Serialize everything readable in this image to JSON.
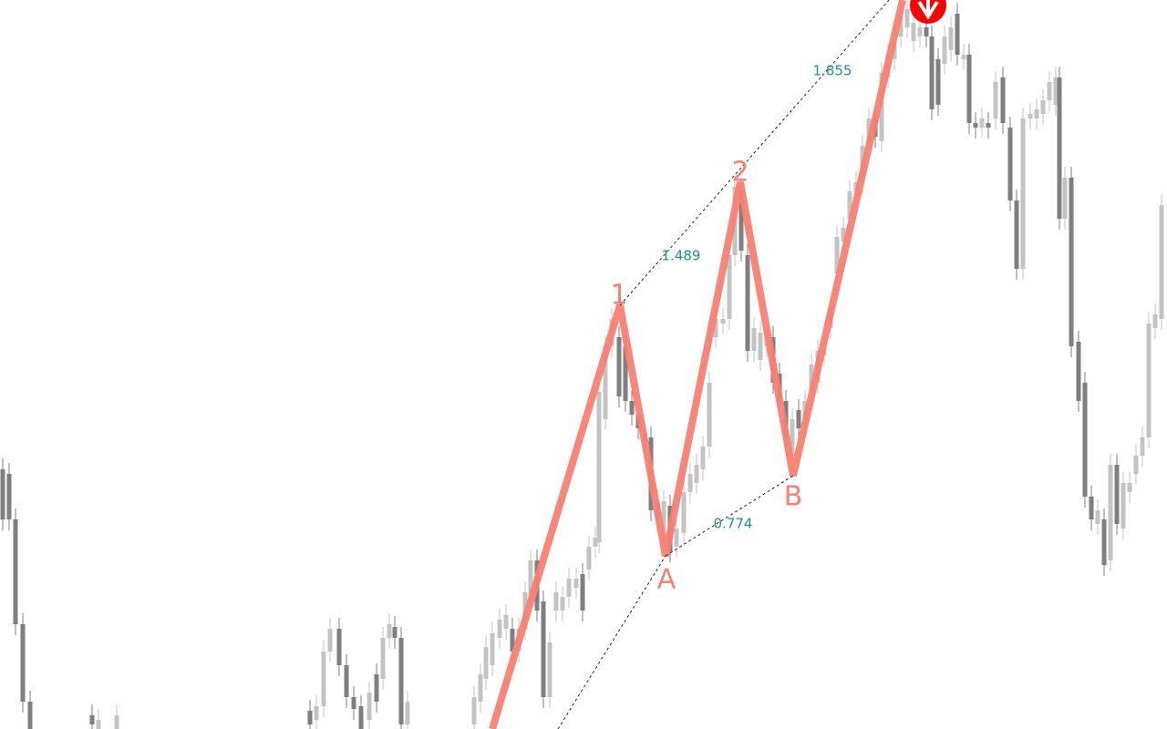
{
  "pattern": {
    "points": [
      "1",
      "2",
      "A",
      "B"
    ],
    "ratios": [
      1.489,
      1.855,
      0.774
    ]
  }
}
